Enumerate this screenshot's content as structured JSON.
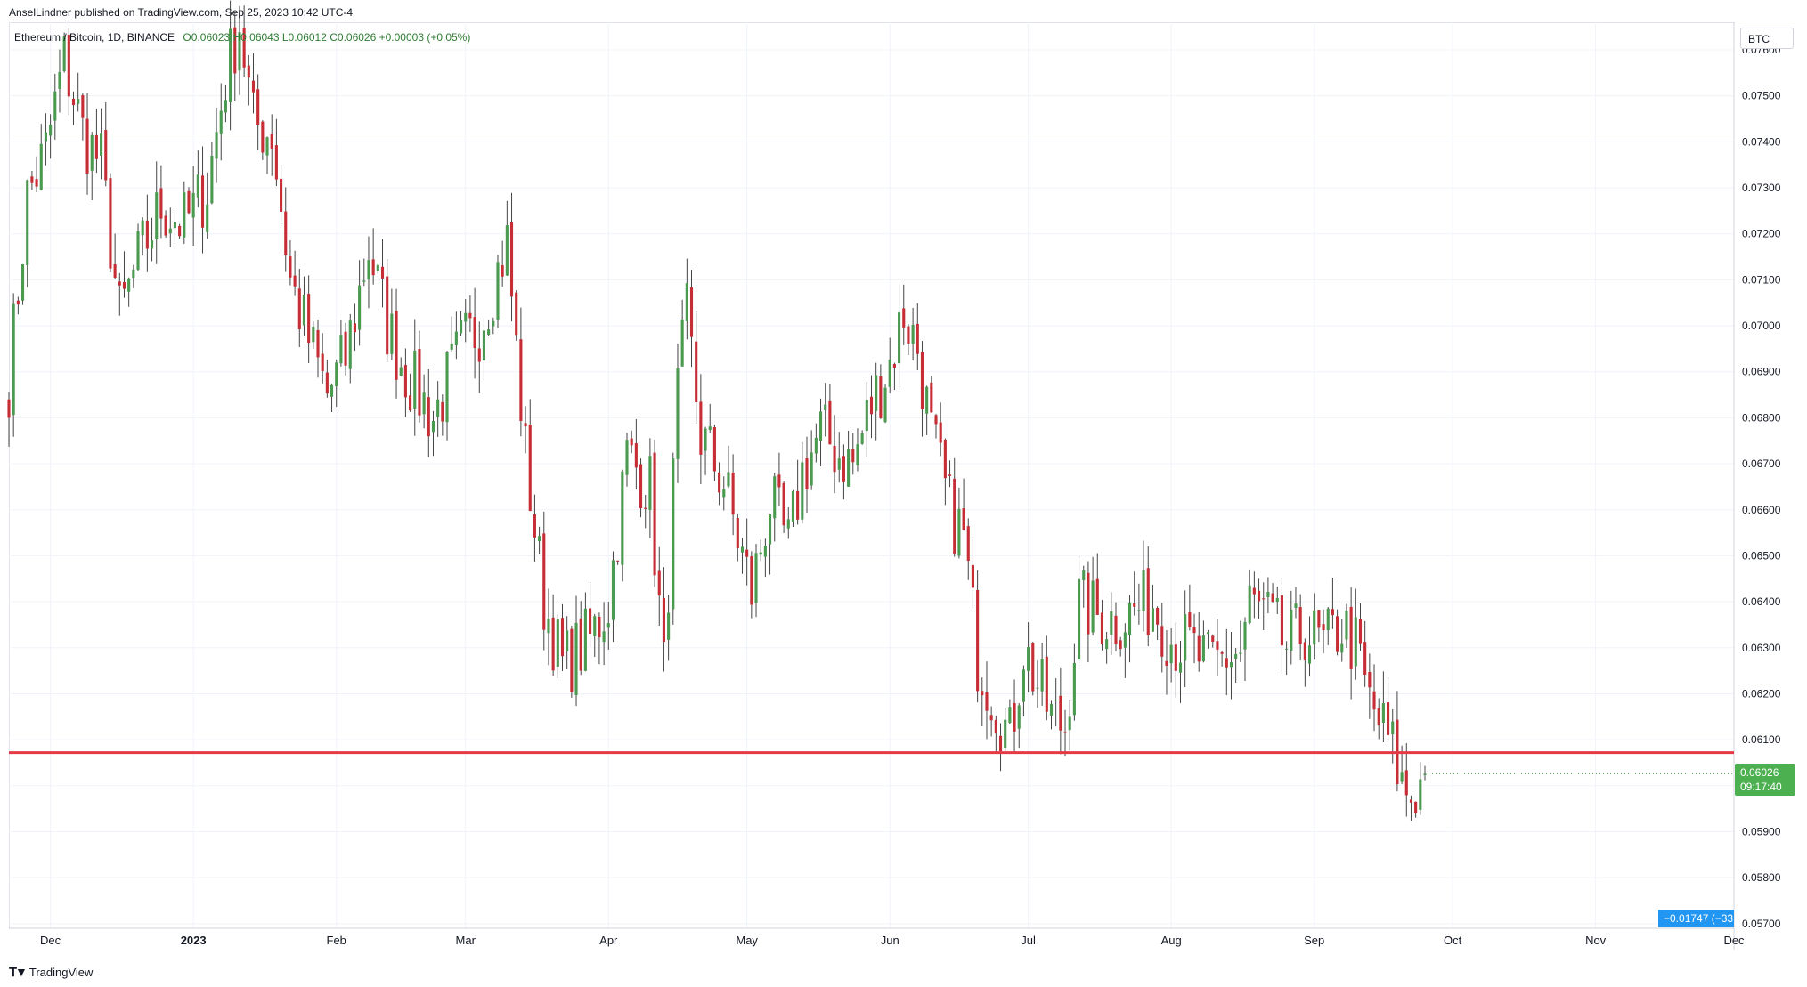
{
  "publisher_line": "AnselLindner published on TradingView.com, Sep 25, 2023 10:42 UTC-4",
  "symbol_line": {
    "symbol": "Ethereum / Bitcoin, 1D, BINANCE",
    "ohlc": "O0.06023 H0.06043 L0.06012 C0.06026 +0.00003 (+0.05%)"
  },
  "currency_label": "BTC",
  "last_price": {
    "value": "0.06026",
    "countdown": "09:17:40"
  },
  "measure_label": "−0.01747 (−33.",
  "footer_brand": "TradingView",
  "colors": {
    "up": "#4a9a4f",
    "down": "#c62d35",
    "support_line": "#e53945",
    "accent": "#2196f3"
  },
  "chart_data": {
    "type": "candlestick",
    "title": "Ethereum / Bitcoin, 1D, BINANCE",
    "y_unit": "BTC",
    "ylim": [
      0.0569,
      0.0766
    ],
    "y_ticks": [
      "0.07600",
      "0.07500",
      "0.07400",
      "0.07300",
      "0.07200",
      "0.07100",
      "0.07000",
      "0.06900",
      "0.06800",
      "0.06700",
      "0.06600",
      "0.06500",
      "0.06400",
      "0.06300",
      "0.06200",
      "0.06100",
      "0.06000",
      "0.05900",
      "0.05800",
      "0.05700"
    ],
    "x_range": [
      "2022-11-22",
      "2023-12-01"
    ],
    "x_ticks": [
      {
        "date": "2022-12-01",
        "label": "Dec"
      },
      {
        "date": "2023-01-01",
        "label": "2023"
      },
      {
        "date": "2023-02-01",
        "label": "Feb"
      },
      {
        "date": "2023-03-01",
        "label": "Mar"
      },
      {
        "date": "2023-04-01",
        "label": "Apr"
      },
      {
        "date": "2023-05-01",
        "label": "May"
      },
      {
        "date": "2023-06-01",
        "label": "Jun"
      },
      {
        "date": "2023-07-01",
        "label": "Jul"
      },
      {
        "date": "2023-08-01",
        "label": "Aug"
      },
      {
        "date": "2023-09-01",
        "label": "Sep"
      },
      {
        "date": "2023-10-01",
        "label": "Oct"
      },
      {
        "date": "2023-11-01",
        "label": "Nov"
      },
      {
        "date": "2023-12-01",
        "label": "Dec"
      }
    ],
    "close_path": [
      [
        "2022-11-22",
        0.0688
      ],
      [
        "2022-11-26",
        0.0728
      ],
      [
        "2022-11-30",
        0.0738
      ],
      [
        "2022-12-04",
        0.0758
      ],
      [
        "2022-12-08",
        0.0742
      ],
      [
        "2022-12-12",
        0.0735
      ],
      [
        "2022-12-16",
        0.0702
      ],
      [
        "2022-12-20",
        0.0714
      ],
      [
        "2022-12-25",
        0.0726
      ],
      [
        "2022-12-30",
        0.0722
      ],
      [
        "2023-01-04",
        0.073
      ],
      [
        "2023-01-08",
        0.0754
      ],
      [
        "2023-01-11",
        0.0766
      ],
      [
        "2023-01-14",
        0.0744
      ],
      [
        "2023-01-18",
        0.0742
      ],
      [
        "2023-01-22",
        0.071
      ],
      [
        "2023-01-26",
        0.0697
      ],
      [
        "2023-01-30",
        0.0685
      ],
      [
        "2023-02-03",
        0.0693
      ],
      [
        "2023-02-08",
        0.0717
      ],
      [
        "2023-02-12",
        0.07
      ],
      [
        "2023-02-16",
        0.069
      ],
      [
        "2023-02-22",
        0.068
      ],
      [
        "2023-02-28",
        0.0695
      ],
      [
        "2023-03-04",
        0.07
      ],
      [
        "2023-03-08",
        0.0712
      ],
      [
        "2023-03-10",
        0.0718
      ],
      [
        "2023-03-14",
        0.0672
      ],
      [
        "2023-03-18",
        0.064
      ],
      [
        "2023-03-22",
        0.0626
      ],
      [
        "2023-03-28",
        0.0632
      ],
      [
        "2023-04-01",
        0.064
      ],
      [
        "2023-04-05",
        0.0672
      ],
      [
        "2023-04-10",
        0.0665
      ],
      [
        "2023-04-13",
        0.0625
      ],
      [
        "2023-04-16",
        0.0685
      ],
      [
        "2023-04-18",
        0.0702
      ],
      [
        "2023-04-21",
        0.0676
      ],
      [
        "2023-04-26",
        0.0666
      ],
      [
        "2023-04-30",
        0.065
      ],
      [
        "2023-05-02",
        0.0642
      ],
      [
        "2023-05-06",
        0.0662
      ],
      [
        "2023-05-10",
        0.0652
      ],
      [
        "2023-05-13",
        0.0668
      ],
      [
        "2023-05-17",
        0.0677
      ],
      [
        "2023-05-21",
        0.0672
      ],
      [
        "2023-05-24",
        0.067
      ],
      [
        "2023-05-28",
        0.0683
      ],
      [
        "2023-06-01",
        0.0692
      ],
      [
        "2023-06-04",
        0.0703
      ],
      [
        "2023-06-07",
        0.0695
      ],
      [
        "2023-06-10",
        0.0676
      ],
      [
        "2023-06-14",
        0.066
      ],
      [
        "2023-06-17",
        0.0654
      ],
      [
        "2023-06-20",
        0.0628
      ],
      [
        "2023-06-24",
        0.0618
      ],
      [
        "2023-06-27",
        0.061
      ],
      [
        "2023-06-30",
        0.063
      ],
      [
        "2023-07-03",
        0.0622
      ],
      [
        "2023-07-06",
        0.0615
      ],
      [
        "2023-07-09",
        0.0613
      ],
      [
        "2023-07-12",
        0.064
      ],
      [
        "2023-07-16",
        0.0637
      ],
      [
        "2023-07-20",
        0.0636
      ],
      [
        "2023-07-24",
        0.0638
      ],
      [
        "2023-07-28",
        0.064
      ],
      [
        "2023-08-01",
        0.0632
      ],
      [
        "2023-08-05",
        0.063
      ],
      [
        "2023-08-09",
        0.0626
      ],
      [
        "2023-08-13",
        0.0628
      ],
      [
        "2023-08-16",
        0.0629
      ],
      [
        "2023-08-18",
        0.064
      ],
      [
        "2023-08-22",
        0.0636
      ],
      [
        "2023-08-26",
        0.063
      ],
      [
        "2023-08-30",
        0.0634
      ],
      [
        "2023-09-03",
        0.063
      ],
      [
        "2023-09-07",
        0.0635
      ],
      [
        "2023-09-10",
        0.063
      ],
      [
        "2023-09-13",
        0.0618
      ],
      [
        "2023-09-16",
        0.0612
      ],
      [
        "2023-09-18",
        0.0608
      ],
      [
        "2023-09-20",
        0.06
      ],
      [
        "2023-09-22",
        0.0598
      ],
      [
        "2023-09-24",
        0.06
      ],
      [
        "2023-09-25",
        0.06026
      ]
    ],
    "last_candle": {
      "date": "2023-09-25",
      "open": 0.06023,
      "high": 0.06043,
      "low": 0.06012,
      "close": 0.06026,
      "change": "+0.00003 (+0.05%)"
    },
    "horizontal_line": {
      "value": 0.06072,
      "color": "#e53945"
    },
    "grid": true,
    "legend": "top-left"
  }
}
